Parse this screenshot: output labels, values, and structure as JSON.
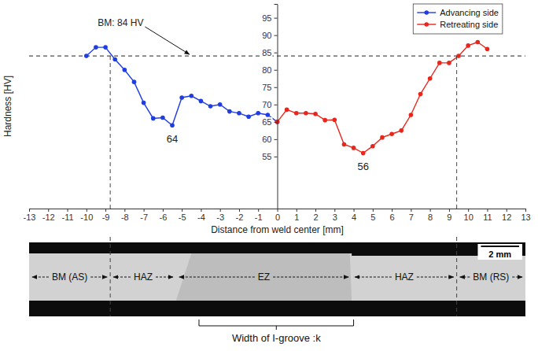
{
  "chart_data": {
    "type": "line",
    "xlabel": "Distance from weld center [mm]",
    "ylabel": "Hardness [HV]",
    "xlim": [
      -13,
      13
    ],
    "xticks": [
      -13,
      -12,
      -11,
      -10,
      -9,
      -8,
      -7,
      -6,
      -5,
      -4,
      -3,
      -2,
      -1,
      0,
      1,
      2,
      3,
      4,
      5,
      6,
      7,
      8,
      9,
      10,
      11,
      12,
      13
    ],
    "ylim": [
      40,
      99
    ],
    "yticks": [
      55,
      60,
      65,
      70,
      75,
      80,
      85,
      90,
      95
    ],
    "grid": false,
    "legend": "top-right",
    "series": [
      {
        "name": "Advancing side",
        "color": "#1f3de0",
        "marker": "circle",
        "line_style": "solid",
        "x": [
          -10,
          -9.5,
          -9,
          -8.5,
          -8,
          -7.5,
          -7,
          -6.5,
          -6,
          -5.5,
          -5,
          -4.5,
          -4,
          -3.5,
          -3,
          -2.5,
          -2,
          -1.5,
          -1,
          -0.5,
          0
        ],
        "values": [
          84,
          86.5,
          86.5,
          83,
          80,
          76.5,
          70.5,
          66,
          66.2,
          64,
          72,
          72.5,
          71,
          69.5,
          70,
          68,
          67.5,
          66.5,
          67.5,
          67,
          65
        ]
      },
      {
        "name": "Retreating side",
        "color": "#e8261c",
        "marker": "circle",
        "line_style": "solid",
        "x": [
          0,
          0.5,
          1,
          1.5,
          2,
          2.5,
          3,
          3.5,
          4,
          4.5,
          5,
          5.5,
          6,
          6.5,
          7,
          7.5,
          8,
          8.5,
          9,
          9.5,
          10,
          10.5,
          11
        ],
        "values": [
          65,
          68.5,
          67.5,
          67.5,
          67.3,
          65.5,
          65.6,
          58.5,
          57.5,
          56,
          58,
          60.5,
          61.5,
          62.5,
          67,
          73,
          77.5,
          82,
          82,
          84,
          87,
          88,
          86
        ]
      }
    ],
    "hlines": [
      {
        "value": 84,
        "label": "BM: 84 HV",
        "line_style": "dashed"
      }
    ],
    "vlines": [
      {
        "value": -8.75,
        "line_style": "dashed"
      },
      {
        "value": 9.4,
        "line_style": "dashed"
      }
    ],
    "annotations": [
      {
        "text": "64",
        "x": -5.5,
        "y": 64
      },
      {
        "text": "56",
        "x": 4.5,
        "y": 56
      }
    ]
  },
  "micrograph": {
    "zones": [
      {
        "label": "BM (AS)",
        "from": -13,
        "to": -8.75
      },
      {
        "label": "HAZ",
        "from": -8.75,
        "to": -5.3
      },
      {
        "label": "EZ",
        "from": -5.3,
        "to": 3.9
      },
      {
        "label": "HAZ",
        "from": 3.9,
        "to": 9.4
      },
      {
        "label": "BM (RS)",
        "from": 9.4,
        "to": 13
      }
    ],
    "scale_bar": {
      "label": "2 mm",
      "length": 2
    },
    "groove": {
      "label": "Width of I-groove :k",
      "from": -4.1,
      "to": 4.0
    }
  }
}
